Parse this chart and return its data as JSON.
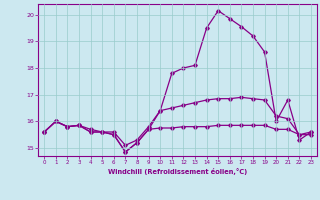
{
  "xlabel": "Windchill (Refroidissement éolien,°C)",
  "bg_color": "#cce8f0",
  "line_color": "#880088",
  "grid_color": "#99cccc",
  "xlim": [
    -0.5,
    23.5
  ],
  "ylim": [
    14.7,
    20.4
  ],
  "yticks": [
    15,
    16,
    17,
    18,
    19,
    20
  ],
  "xticks": [
    0,
    1,
    2,
    3,
    4,
    5,
    6,
    7,
    8,
    9,
    10,
    11,
    12,
    13,
    14,
    15,
    16,
    17,
    18,
    19,
    20,
    21,
    22,
    23
  ],
  "line1_x": [
    0,
    1,
    2,
    3,
    4,
    5,
    6,
    7,
    8,
    9,
    10,
    11,
    12,
    13,
    14,
    15,
    16,
    17,
    18,
    19,
    20,
    21,
    22,
    23
  ],
  "line1_y": [
    15.6,
    16.0,
    15.8,
    15.85,
    15.6,
    15.6,
    15.5,
    14.85,
    15.2,
    15.7,
    15.75,
    15.75,
    15.8,
    15.8,
    15.8,
    15.85,
    15.85,
    15.85,
    15.85,
    15.85,
    15.7,
    15.7,
    15.5,
    15.5
  ],
  "line2_x": [
    0,
    1,
    2,
    3,
    4,
    5,
    6,
    7,
    8,
    9,
    10,
    11,
    12,
    13,
    14,
    15,
    16,
    17,
    18,
    19,
    20,
    21,
    22,
    23
  ],
  "line2_y": [
    15.6,
    16.0,
    15.8,
    15.85,
    15.7,
    15.6,
    15.6,
    15.1,
    15.3,
    15.8,
    16.4,
    17.8,
    18.0,
    18.1,
    19.5,
    20.15,
    19.85,
    19.55,
    19.2,
    18.6,
    16.0,
    16.8,
    15.3,
    15.6
  ],
  "line3_x": [
    0,
    1,
    2,
    3,
    4,
    5,
    6,
    7,
    8,
    9,
    10,
    11,
    12,
    13,
    14,
    15,
    16,
    17,
    18,
    19,
    20,
    21,
    22,
    23
  ],
  "line3_y": [
    15.6,
    16.0,
    15.8,
    15.85,
    15.6,
    15.6,
    15.5,
    14.85,
    15.2,
    15.7,
    16.4,
    16.5,
    16.6,
    16.7,
    16.8,
    16.85,
    16.85,
    16.9,
    16.85,
    16.8,
    16.2,
    16.1,
    15.5,
    15.6
  ]
}
